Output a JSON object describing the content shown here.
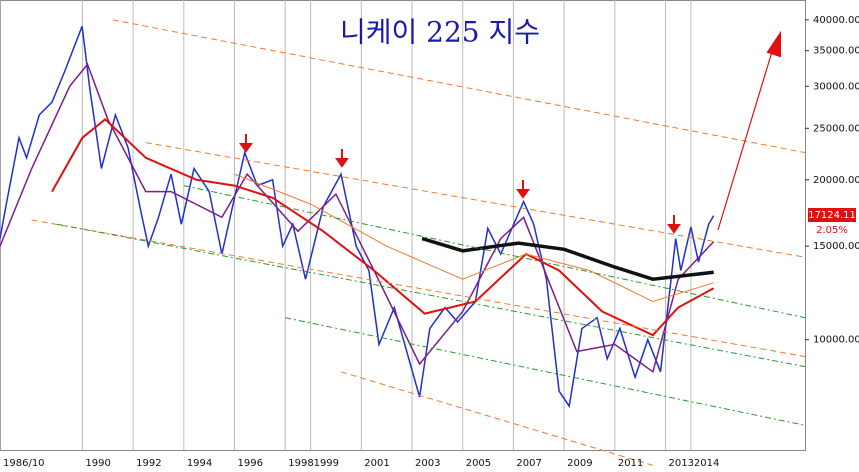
{
  "chart_data": {
    "type": "line",
    "title": "니케이 225 지수",
    "log_scale": true,
    "grid": true,
    "xlim": [
      1986.75,
      2018.5
    ],
    "ylim": [
      6200,
      43600
    ],
    "xticks": [
      {
        "value": 1986.75,
        "label": "1986/10"
      },
      1990,
      1992,
      1994,
      1996,
      1998,
      1999,
      2001,
      2003,
      2005,
      2007,
      2009,
      2011,
      2013,
      2014
    ],
    "yticks": [
      {
        "value": 10000,
        "label": "10000.00"
      },
      {
        "value": 15000,
        "label": "15000.00"
      },
      {
        "value": 20000,
        "label": "20000.00"
      },
      {
        "value": 25000,
        "label": "25000.00"
      },
      {
        "value": 30000,
        "label": "30000.00"
      },
      {
        "value": 35000,
        "label": "35000.00"
      },
      {
        "value": 40000,
        "label": "40000.00"
      }
    ],
    "last_value": 17124.11,
    "last_value_label": "17124.11",
    "last_change_label": "2.05%",
    "series": [
      {
        "color": "#1f2fd0",
        "width": 1.5,
        "x": [
          1986.75,
          1987.0,
          1987.5,
          1987.8,
          1988.3,
          1988.8,
          1989.3,
          1989.99,
          1990.3,
          1990.75,
          1991.3,
          1991.8,
          1992.3,
          1992.6,
          1993.0,
          1993.5,
          1993.9,
          1994.4,
          1995.0,
          1995.5,
          1996.4,
          1996.9,
          1997.5,
          1997.9,
          1998.3,
          1998.8,
          1999.5,
          2000.2,
          2000.8,
          2001.3,
          2001.7,
          2002.3,
          2003.3,
          2003.7,
          2004.3,
          2004.8,
          2005.5,
          2005.99,
          2006.5,
          2007.4,
          2007.8,
          2008.3,
          2008.8,
          2009.2,
          2009.7,
          2010.3,
          2010.7,
          2011.2,
          2011.8,
          2012.3,
          2012.8,
          2013.4,
          2013.6,
          2014.0,
          2014.3,
          2014.7,
          2014.9
        ],
        "values": [
          15500,
          18000,
          24000,
          22000,
          26500,
          28000,
          32000,
          38900,
          29500,
          21000,
          26500,
          23000,
          17500,
          15000,
          17000,
          20500,
          16500,
          21000,
          19000,
          14500,
          22500,
          19500,
          20000,
          15000,
          16500,
          13000,
          17800,
          20500,
          15000,
          13500,
          9800,
          11500,
          7800,
          10500,
          11500,
          10800,
          11800,
          16200,
          14500,
          18200,
          16500,
          13000,
          8000,
          7500,
          10500,
          11000,
          9200,
          10500,
          8500,
          10000,
          8700,
          15500,
          13500,
          16300,
          14000,
          16500,
          17124.11
        ]
      },
      {
        "color": "#7a1f8a",
        "width": 1.5,
        "x": [
          1986.75,
          1988.0,
          1989.5,
          1990.2,
          1991.0,
          1992.5,
          1993.5,
          1995.5,
          1996.5,
          1998.5,
          2000.0,
          2001.5,
          2003.3,
          2005.0,
          2006.5,
          2007.4,
          2008.5,
          2009.5,
          2011.0,
          2012.5,
          2013.5,
          2014.9
        ],
        "values": [
          15000,
          21000,
          30000,
          33000,
          26000,
          19000,
          19000,
          17000,
          20500,
          16000,
          18800,
          13500,
          9000,
          11300,
          15500,
          17000,
          12500,
          9500,
          9800,
          8700,
          13000,
          15300
        ]
      },
      {
        "color": "#e01010",
        "width": 2,
        "x": [
          1988.8,
          1990.0,
          1990.9,
          1992.5,
          1994.5,
          1996.0,
          1997.5,
          1999.5,
          2001.5,
          2003.5,
          2005.5,
          2007.5,
          2008.8,
          2010.5,
          2012.5,
          2013.5,
          2014.9
        ],
        "values": [
          19000,
          24000,
          26000,
          22000,
          20000,
          19500,
          18500,
          16000,
          13500,
          11200,
          11800,
          14500,
          13500,
          11300,
          10200,
          11500,
          12500
        ]
      },
      {
        "color": "#f07a30",
        "width": 1,
        "x": [
          1996.0,
          1999.0,
          2002.0,
          2005.0,
          2007.5,
          2010.0,
          2012.5,
          2014.9
        ],
        "values": [
          20500,
          18000,
          15000,
          13000,
          14500,
          13500,
          11800,
          12800
        ]
      },
      {
        "color": "#111111",
        "width": 3.5,
        "x": [
          2003.4,
          2005.0,
          2007.2,
          2009.0,
          2011.0,
          2012.5,
          2014.9
        ],
        "values": [
          15500,
          14700,
          15200,
          14800,
          13700,
          13000,
          13400
        ]
      },
      {
        "color": "#f07a30",
        "dash": "6 4",
        "width": 1,
        "x": [
          1991.2,
          2018.5
        ],
        "values": [
          40000,
          22500
        ]
      },
      {
        "color": "#f07a30",
        "dash": "6 4",
        "width": 1,
        "x": [
          1992.5,
          2018.5
        ],
        "values": [
          23500,
          14300
        ]
      },
      {
        "color": "#f07a30",
        "dash": "6 4",
        "width": 1,
        "x": [
          1988.0,
          2018.5
        ],
        "values": [
          16800,
          9300
        ]
      },
      {
        "color": "#f07a30",
        "dash": "6 4",
        "width": 1,
        "x": [
          2000.2,
          2012.5
        ],
        "values": [
          8700,
          5800
        ]
      },
      {
        "color": "#2a9a2a",
        "dash": "6 3 2 3",
        "width": 1,
        "x": [
          1994.0,
          2018.5
        ],
        "values": [
          19500,
          11000
        ]
      },
      {
        "color": "#2a9a2a",
        "dash": "6 3 2 3",
        "width": 1,
        "x": [
          1989.0,
          2018.5
        ],
        "values": [
          16500,
          8900
        ]
      },
      {
        "color": "#2a9a2a",
        "dash": "6 3 2 3",
        "width": 1,
        "x": [
          1998.0,
          2018.5
        ],
        "values": [
          11000,
          6900
        ]
      }
    ]
  }
}
